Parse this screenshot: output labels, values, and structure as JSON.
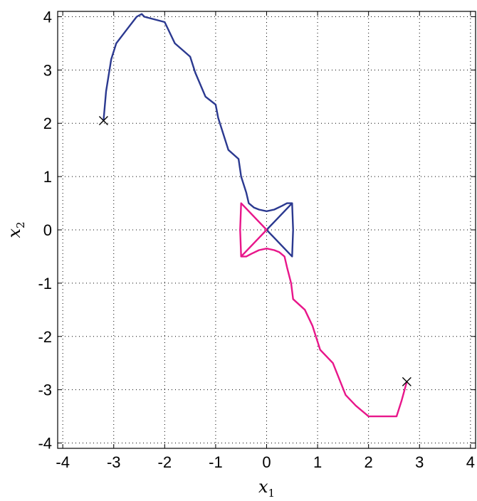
{
  "chart_data": {
    "type": "line",
    "title": "",
    "xlabel": "x",
    "xlabel_sub": "1",
    "ylabel": "x",
    "ylabel_sub": "2",
    "xlim": [
      -4.1,
      4.1
    ],
    "ylim": [
      -4.1,
      4.1
    ],
    "xticks": [
      -4,
      -3,
      -2,
      -1,
      0,
      1,
      2,
      3,
      4
    ],
    "yticks": [
      -4,
      -3,
      -2,
      -1,
      0,
      1,
      2,
      3,
      4
    ],
    "grid": true,
    "legend": "none",
    "series": [
      {
        "color": "#2b3990",
        "points": [
          [
            -3.2,
            2.05
          ],
          [
            -3.15,
            2.6
          ],
          [
            -3.05,
            3.2
          ],
          [
            -2.95,
            3.5
          ],
          [
            -2.75,
            3.75
          ],
          [
            -2.55,
            4.0
          ],
          [
            -2.45,
            4.05
          ],
          [
            -2.4,
            4.0
          ],
          [
            -2.0,
            3.9
          ],
          [
            -1.8,
            3.5
          ],
          [
            -1.5,
            3.25
          ],
          [
            -1.4,
            2.95
          ],
          [
            -1.2,
            2.5
          ],
          [
            -1.0,
            2.35
          ],
          [
            -0.95,
            2.1
          ],
          [
            -0.75,
            1.5
          ],
          [
            -0.55,
            1.33
          ],
          [
            -0.5,
            1.0
          ],
          [
            -0.4,
            0.7
          ],
          [
            -0.35,
            0.5
          ],
          [
            -0.25,
            0.42
          ],
          [
            -0.15,
            0.38
          ],
          [
            0.0,
            0.35
          ],
          [
            0.15,
            0.38
          ],
          [
            0.3,
            0.45
          ],
          [
            0.4,
            0.5
          ],
          [
            0.5,
            0.5
          ],
          [
            0.52,
            0.0
          ],
          [
            0.5,
            -0.5
          ],
          [
            0.0,
            0.0
          ],
          [
            0.5,
            0.5
          ]
        ]
      },
      {
        "color": "#e8168a",
        "points": [
          [
            2.75,
            -2.85
          ],
          [
            2.65,
            -3.2
          ],
          [
            2.55,
            -3.5
          ],
          [
            2.0,
            -3.5
          ],
          [
            1.75,
            -3.3
          ],
          [
            1.55,
            -3.1
          ],
          [
            1.3,
            -2.5
          ],
          [
            1.05,
            -2.25
          ],
          [
            0.9,
            -1.8
          ],
          [
            0.75,
            -1.5
          ],
          [
            0.52,
            -1.3
          ],
          [
            0.48,
            -1.0
          ],
          [
            0.4,
            -0.7
          ],
          [
            0.35,
            -0.5
          ],
          [
            0.25,
            -0.42
          ],
          [
            0.15,
            -0.38
          ],
          [
            0.0,
            -0.35
          ],
          [
            -0.15,
            -0.38
          ],
          [
            -0.3,
            -0.45
          ],
          [
            -0.4,
            -0.5
          ],
          [
            -0.5,
            -0.5
          ],
          [
            -0.52,
            0.0
          ],
          [
            -0.5,
            0.5
          ],
          [
            0.0,
            0.0
          ],
          [
            -0.5,
            -0.5
          ]
        ]
      }
    ],
    "markers": [
      {
        "x": -3.2,
        "y": 2.05,
        "symbol": "x"
      },
      {
        "x": 2.75,
        "y": -2.85,
        "symbol": "x"
      }
    ]
  }
}
